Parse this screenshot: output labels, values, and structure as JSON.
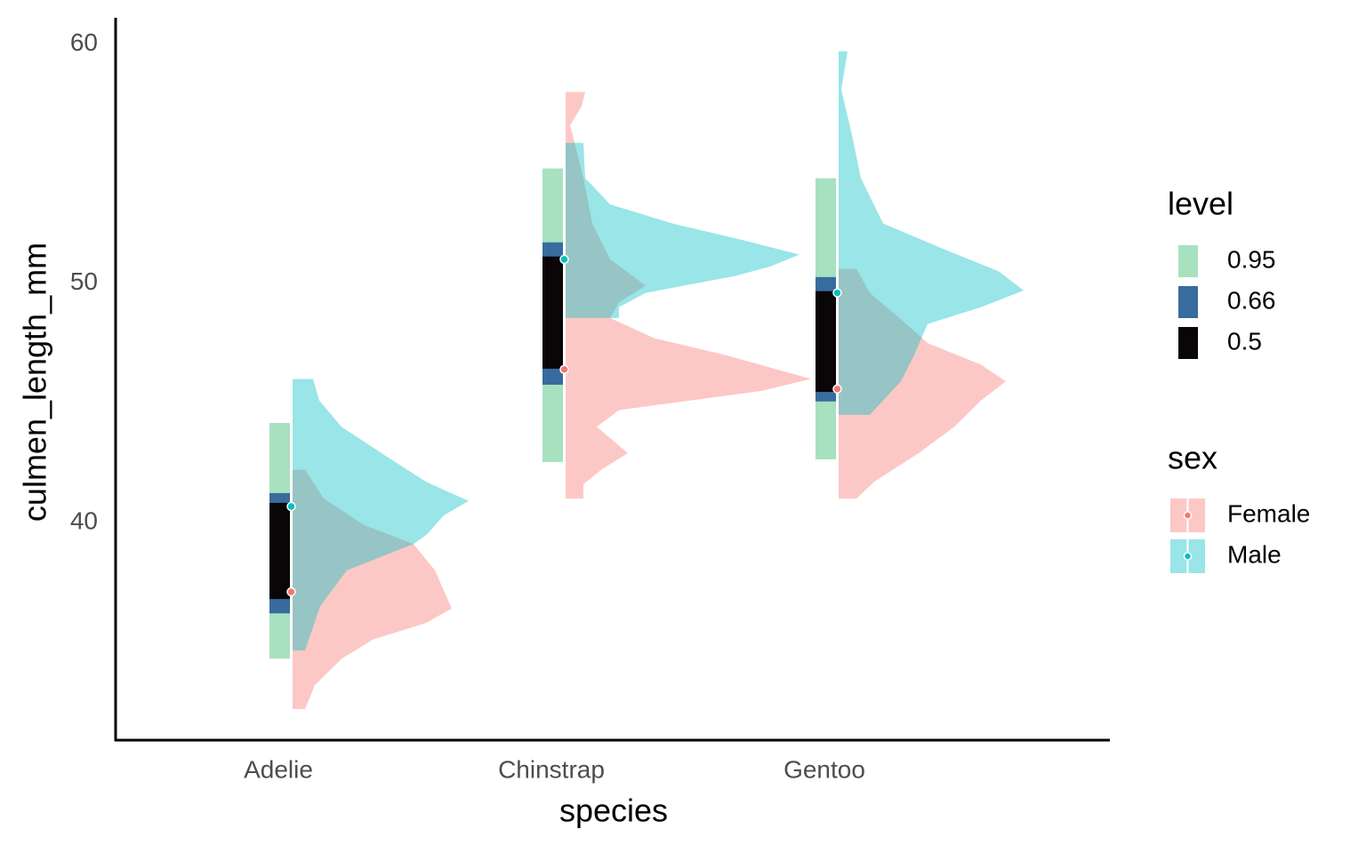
{
  "chart_data": {
    "type": "halfeye",
    "x_label": "species",
    "y_label": "culmen_length_mm",
    "categories": [
      "Adelie",
      "Chinstrap",
      "Gentoo"
    ],
    "ylim": [
      30.9,
      61.1
    ],
    "yticks": [
      40,
      50,
      60
    ],
    "level_title": "level",
    "levels": [
      {
        "name": 0.95,
        "color": "#a7e1bf"
      },
      {
        "name": 0.66,
        "color": "#386b9e"
      },
      {
        "name": 0.5,
        "color": "#0a0607"
      }
    ],
    "intervals": [
      [
        [
          34.31,
          44.16
        ],
        [
          36.2,
          41.23
        ],
        [
          36.8,
          40.82
        ]
      ],
      [
        [
          42.53,
          54.8
        ],
        [
          45.76,
          51.71
        ],
        [
          46.43,
          51.12
        ]
      ],
      [
        [
          42.64,
          54.39
        ],
        [
          45.06,
          50.26
        ],
        [
          45.46,
          49.67
        ]
      ]
    ],
    "legend_title": "sex",
    "series": [
      {
        "name": "Female",
        "color": "#F8766D",
        "medians": [
          37.1,
          46.4,
          45.58
        ],
        "densities": [
          {
            "y": [
              42.2,
              41.0,
              39.9,
              39.1,
              38.0,
              36.4,
              35.8,
              35.1,
              34.3,
              33.2,
              32.2
            ],
            "values": [
              0.14,
              0.35,
              0.8,
              1.36,
              1.6,
              1.79,
              1.5,
              0.9,
              0.55,
              0.25,
              0.14
            ]
          },
          {
            "y": [
              58.0,
              57.4,
              56.6,
              55.9,
              54.4,
              52.5,
              51.0,
              49.9,
              49.2,
              48.55,
              47.7,
              47.0,
              46.0,
              45.5,
              44.7,
              44.0,
              42.9,
              42.2,
              41.6,
              41.0
            ],
            "values": [
              0.22,
              0.18,
              0.05,
              0.1,
              0.2,
              0.3,
              0.5,
              0.9,
              0.6,
              0.5,
              1.0,
              1.8,
              2.76,
              2.2,
              0.6,
              0.35,
              0.7,
              0.4,
              0.2,
              0.2
            ]
          },
          {
            "y": [
              50.6,
              49.6,
              48.5,
              47.5,
              46.6,
              45.9,
              45.1,
              44.0,
              42.9,
              41.7,
              41.0
            ],
            "values": [
              0.2,
              0.35,
              0.7,
              1.0,
              1.6,
              1.88,
              1.6,
              1.3,
              0.9,
              0.4,
              0.2
            ]
          }
        ]
      },
      {
        "name": "Male",
        "color": "#00BFC4",
        "medians": [
          40.67,
          51.0,
          49.6
        ],
        "densities": [
          {
            "y": [
              46.0,
              45.1,
              44.0,
              42.9,
              41.7,
              40.9,
              40.3,
              39.5,
              39.1,
              38.0,
              36.5,
              34.65
            ],
            "values": [
              0.23,
              0.3,
              0.55,
              1.0,
              1.5,
              1.98,
              1.7,
              1.51,
              1.36,
              0.61,
              0.31,
              0.14
            ]
          },
          {
            "y": [
              55.87,
              54.4,
              53.3,
              52.5,
              51.8,
              51.2,
              50.7,
              50.3,
              49.6,
              49.0,
              48.55
            ],
            "values": [
              0.2,
              0.22,
              0.5,
              1.2,
              2.0,
              2.63,
              2.3,
              1.9,
              0.9,
              0.6,
              0.6
            ]
          },
          {
            "y": [
              59.7,
              58.1,
              56.2,
              54.4,
              52.5,
              51.4,
              50.5,
              49.7,
              49.0,
              48.3,
              47.0,
              45.9,
              44.5
            ],
            "values": [
              0.1,
              0.03,
              0.15,
              0.25,
              0.5,
              1.2,
              1.8,
              2.08,
              1.6,
              1.0,
              0.85,
              0.7,
              0.35
            ]
          }
        ]
      }
    ]
  }
}
